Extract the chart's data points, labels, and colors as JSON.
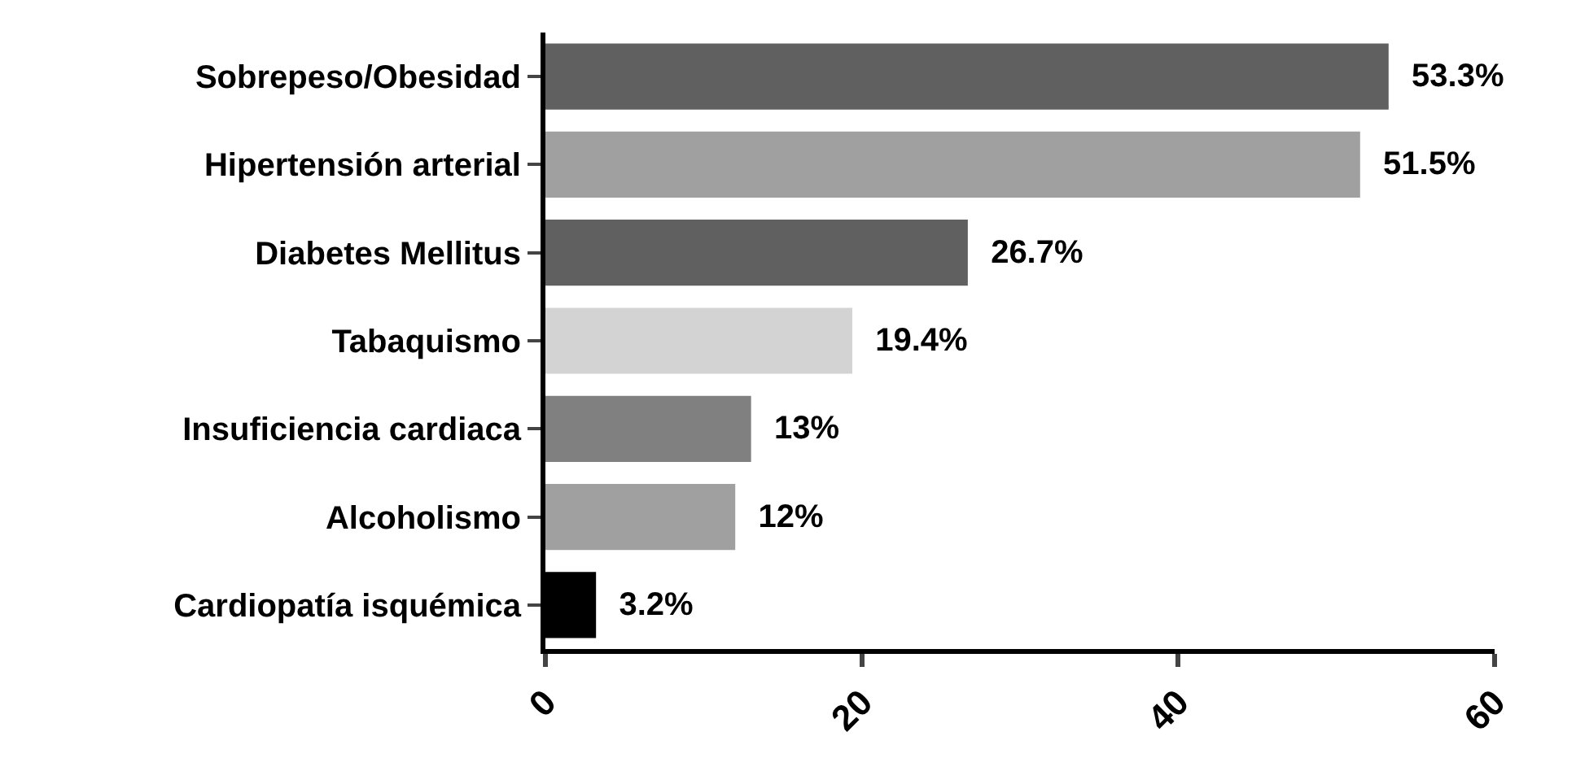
{
  "chart_data": {
    "type": "bar",
    "orientation": "horizontal",
    "categories": [
      "Sobrepeso/Obesidad",
      "Hipertensión arterial",
      "Diabetes Mellitus",
      "Tabaquismo",
      "Insuficiencia cardiaca",
      "Alcoholismo",
      "Cardiopatía isquémica"
    ],
    "values": [
      53.3,
      51.5,
      26.7,
      19.4,
      13,
      12,
      3.2
    ],
    "colors": [
      "#606060",
      "#a0a0a0",
      "#606060",
      "#d3d3d3",
      "#808080",
      "#a0a0a0",
      "#000000"
    ],
    "value_labels": [
      "53.3%",
      "51.5%",
      "26.7%",
      "19.4%",
      "13%",
      "12%",
      "3.2%"
    ],
    "xlim": [
      0,
      60
    ],
    "xticks": [
      0,
      20,
      40,
      60
    ]
  }
}
